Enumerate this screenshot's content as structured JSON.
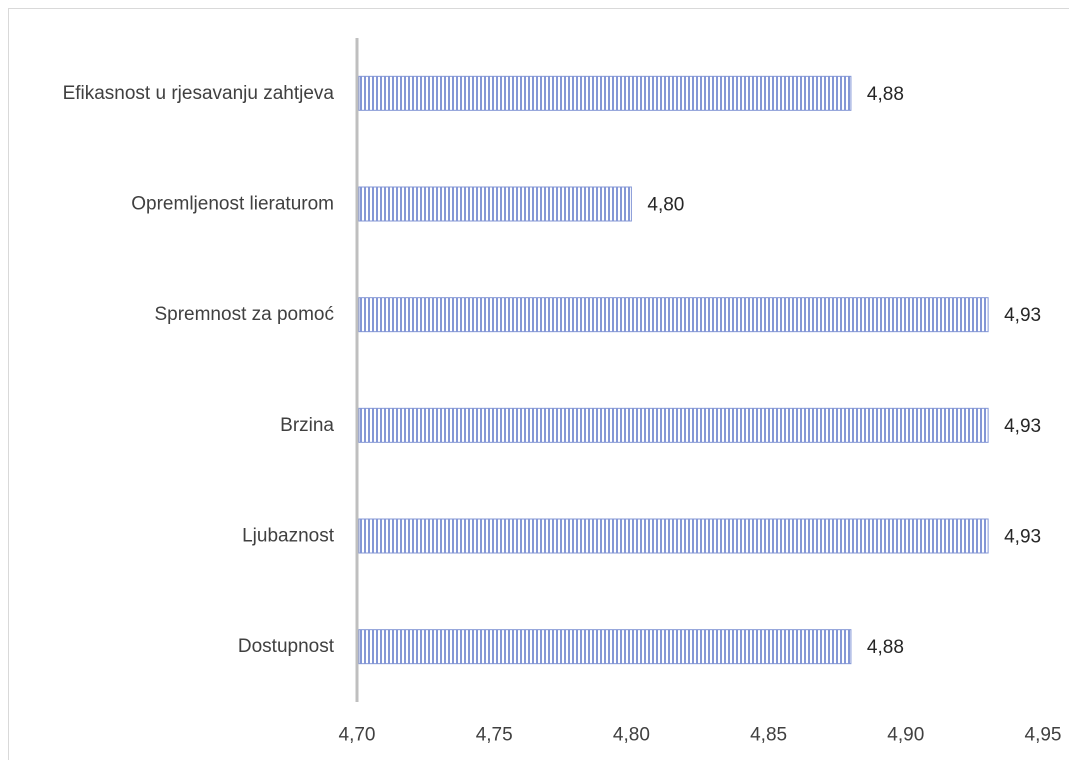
{
  "chart_data": {
    "type": "bar",
    "orientation": "horizontal",
    "categories": [
      "Efikasnost u rjesavanju zahtjeva",
      "Opremljenost lieraturom",
      "Spremnost za pomoć",
      "Brzina",
      "Ljubaznost",
      "Dostupnost"
    ],
    "values": [
      4.88,
      4.8,
      4.93,
      4.93,
      4.93,
      4.88
    ],
    "value_labels": [
      "4,88",
      "4,80",
      "4,93",
      "4,93",
      "4,93",
      "4,88"
    ],
    "xlim": [
      4.7,
      4.95
    ],
    "xticks": [
      4.7,
      4.75,
      4.8,
      4.85,
      4.9,
      4.95
    ],
    "xtick_labels": [
      "4,70",
      "4,75",
      "4,80",
      "4,85",
      "4,90",
      "4,95"
    ],
    "bar_color": "#8497d6",
    "bar_pattern": "vertical-stripes",
    "grid": false,
    "legend": "none"
  }
}
